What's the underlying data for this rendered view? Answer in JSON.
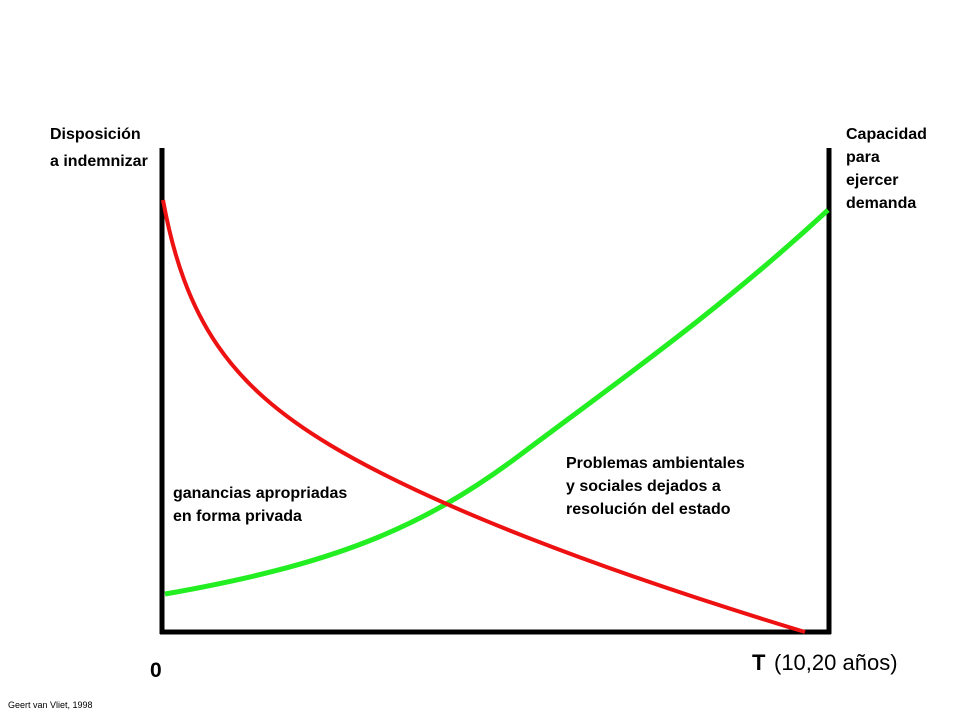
{
  "left_axis_label": [
    "Disposición",
    "a indemnizar"
  ],
  "right_axis_label": [
    "Capacidad",
    "para",
    "ejercer",
    "demanda"
  ],
  "annotations": {
    "private_gains": [
      "ganancias apropriadas",
      "en forma privada"
    ],
    "state_problems": [
      "Problemas ambientales",
      "y sociales dejados a",
      "resolución del estado"
    ]
  },
  "origin_label": "0",
  "time_label": {
    "symbol": "T",
    "text": "(10,20 años)"
  },
  "credit": "Geert van Vliet, 1998"
}
